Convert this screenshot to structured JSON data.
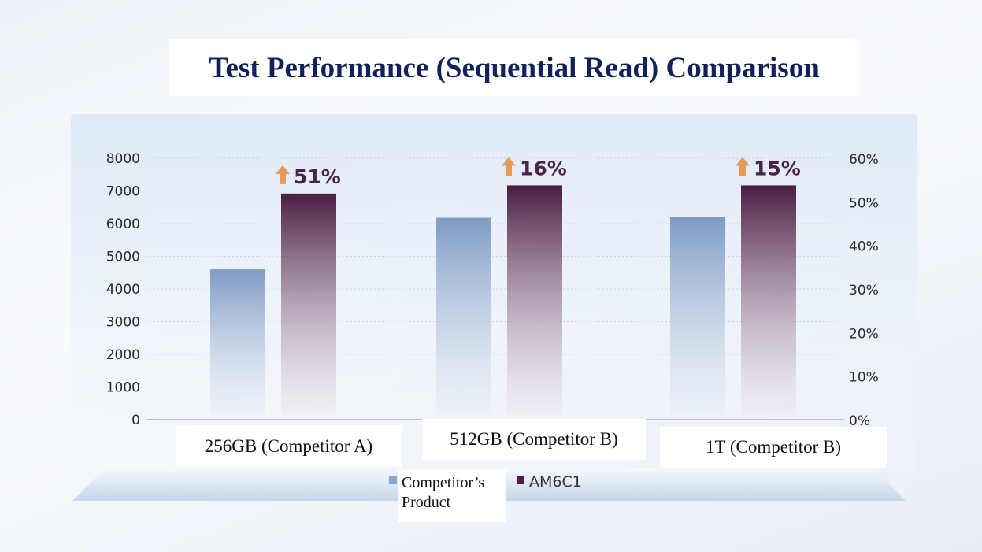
{
  "title": "Test Performance (Sequential Read) Comparison",
  "chart_data": {
    "type": "bar",
    "title": "Test Performance (Sequential Read) Comparison",
    "categories": [
      "256GB (Competitor A)",
      "512GB (Competitor B)",
      "1T (Competitor B)"
    ],
    "series": [
      {
        "name": "Competitor’s Product",
        "values": [
          4600,
          6180,
          6200
        ],
        "color": "#8aa6cc"
      },
      {
        "name": "AM6C1",
        "values": [
          6920,
          7170,
          7170
        ],
        "color": "#4d1f45"
      }
    ],
    "improvements": [
      "51%",
      "16%",
      "15%"
    ],
    "ylim": [
      0,
      8000
    ],
    "yticks": [
      "0",
      "1000",
      "2000",
      "3000",
      "4000",
      "5000",
      "6000",
      "7000",
      "8000"
    ],
    "y2lim": [
      0,
      60
    ],
    "y2ticks": [
      "0%",
      "10%",
      "20%",
      "30%",
      "40%",
      "50%",
      "60%"
    ],
    "grid": true,
    "legend_position": "bottom-center"
  },
  "colors": {
    "title": "#12215a",
    "arrow": "#e49a5a"
  }
}
